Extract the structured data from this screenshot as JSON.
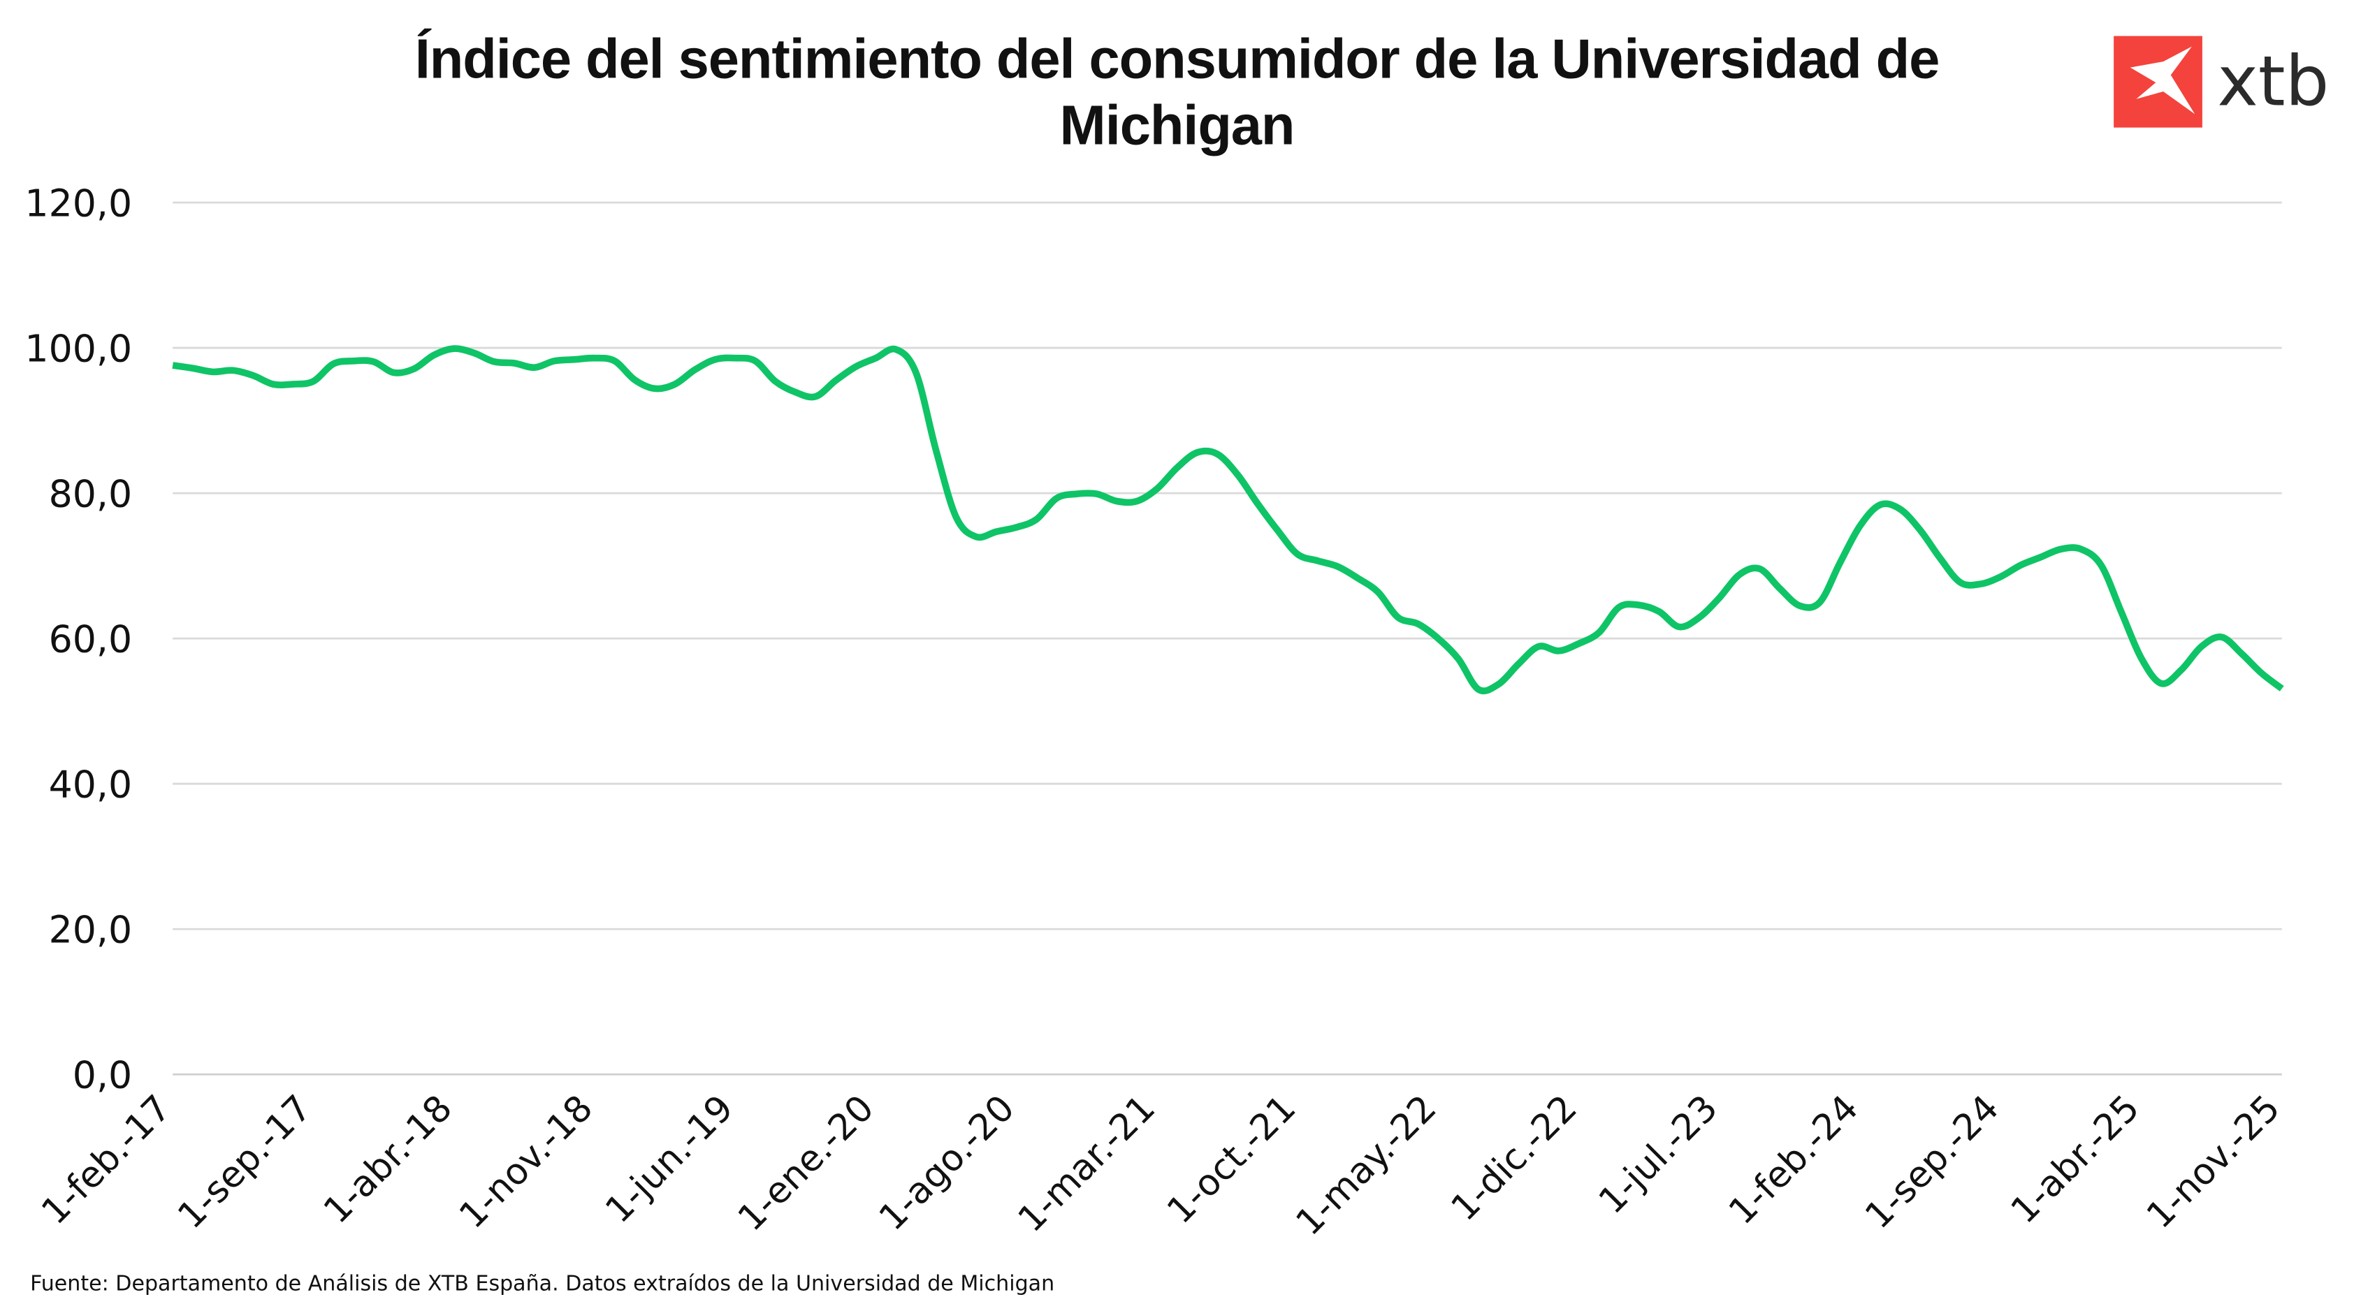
{
  "logo": {
    "text": "xtb",
    "color": "#f4433c"
  },
  "source": "Fuente: Departamento de Análisis de XTB España. Datos extraídos de la Universidad de Michigan",
  "chart_data": {
    "type": "line",
    "title_lines": [
      "Índice del sentimiento del consumidor de la Universidad de",
      "Michigan"
    ],
    "xlabel": "",
    "ylabel": "",
    "ylim": [
      0,
      120
    ],
    "yticks": [
      "0,0",
      "20,0",
      "40,0",
      "60,0",
      "80,0",
      "100,0",
      "120,0"
    ],
    "ytick_values": [
      0,
      20,
      40,
      60,
      80,
      100,
      120
    ],
    "grid": "horizontal",
    "line_color": "#0fc466",
    "xtick_labels": [
      "1-feb.-17",
      "1-sep.-17",
      "1-abr.-18",
      "1-nov.-18",
      "1-jun.-19",
      "1-ene.-20",
      "1-ago.-20",
      "1-mar.-21",
      "1-oct.-21",
      "1-may.-22",
      "1-dic.-22",
      "1-jul.-23",
      "1-feb.-24",
      "1-sep.-24",
      "1-abr.-25",
      "1-nov.-25"
    ],
    "x": [
      "1-feb.-17",
      "1-mar.-17",
      "1-abr.-17",
      "1-may.-17",
      "1-jun.-17",
      "1-jul.-17",
      "1-ago.-17",
      "1-sep.-17",
      "1-oct.-17",
      "1-nov.-17",
      "1-dic.-17",
      "1-ene.-18",
      "1-feb.-18",
      "1-mar.-18",
      "1-abr.-18",
      "1-may.-18",
      "1-jun.-18",
      "1-jul.-18",
      "1-ago.-18",
      "1-sep.-18",
      "1-oct.-18",
      "1-nov.-18",
      "1-dic.-18",
      "1-ene.-19",
      "1-feb.-19",
      "1-mar.-19",
      "1-abr.-19",
      "1-may.-19",
      "1-jun.-19",
      "1-jul.-19",
      "1-ago.-19",
      "1-sep.-19",
      "1-oct.-19",
      "1-nov.-19",
      "1-dic.-19",
      "1-ene.-20",
      "1-feb.-20",
      "1-mar.-20",
      "1-abr.-20",
      "1-may.-20",
      "1-jun.-20",
      "1-jul.-20",
      "1-ago.-20",
      "1-sep.-20",
      "1-oct.-20",
      "1-nov.-20",
      "1-dic.-20",
      "1-ene.-21",
      "1-feb.-21",
      "1-mar.-21",
      "1-abr.-21",
      "1-may.-21",
      "1-jun.-21",
      "1-jul.-21",
      "1-ago.-21",
      "1-sep.-21",
      "1-oct.-21",
      "1-nov.-21",
      "1-dic.-21",
      "1-ene.-22",
      "1-feb.-22",
      "1-mar.-22",
      "1-abr.-22",
      "1-may.-22",
      "1-jun.-22",
      "1-jul.-22",
      "1-ago.-22",
      "1-sep.-22",
      "1-oct.-22",
      "1-nov.-22",
      "1-dic.-22",
      "1-ene.-23",
      "1-feb.-23",
      "1-mar.-23",
      "1-abr.-23",
      "1-may.-23",
      "1-jun.-23",
      "1-jul.-23",
      "1-ago.-23",
      "1-sep.-23",
      "1-oct.-23",
      "1-nov.-23",
      "1-dic.-23",
      "1-ene.-24",
      "1-feb.-24",
      "1-mar.-24",
      "1-abr.-24",
      "1-may.-24",
      "1-jun.-24",
      "1-jul.-24",
      "1-ago.-24",
      "1-sep.-24",
      "1-oct.-24",
      "1-nov.-24",
      "1-dic.-24",
      "1-ene.-25",
      "1-feb.-25",
      "1-mar.-25",
      "1-abr.-25",
      "1-may.-25",
      "1-jun.-25",
      "1-jul.-25",
      "1-ago.-25",
      "1-sep.-25",
      "1-oct.-25",
      "1-nov.-25"
    ],
    "values": [
      97.6,
      97.2,
      96.7,
      96.9,
      96.2,
      95.0,
      95.0,
      95.4,
      97.8,
      98.2,
      98.1,
      96.6,
      97.1,
      99.0,
      99.9,
      99.3,
      98.1,
      97.9,
      97.3,
      98.2,
      98.4,
      98.6,
      98.2,
      95.6,
      94.4,
      95.0,
      97.0,
      98.4,
      98.6,
      98.2,
      95.4,
      93.9,
      93.3,
      95.5,
      97.4,
      98.6,
      99.8,
      96.6,
      85.9,
      76.7,
      74.0,
      74.7,
      75.3,
      76.4,
      79.3,
      79.9,
      79.9,
      78.9,
      78.9,
      80.6,
      83.5,
      85.6,
      85.4,
      82.6,
      78.6,
      74.9,
      71.6,
      70.7,
      69.9,
      68.3,
      66.4,
      62.9,
      62.0,
      60.0,
      57.2,
      53.0,
      53.7,
      56.5,
      58.9,
      58.3,
      59.3,
      60.8,
      64.3,
      64.6,
      63.7,
      61.6,
      62.9,
      65.6,
      68.8,
      69.6,
      66.9,
      64.5,
      65.0,
      70.4,
      75.5,
      78.4,
      77.8,
      74.9,
      71.0,
      67.7,
      67.5,
      68.5,
      70.1,
      71.2,
      72.3,
      72.3,
      70.1,
      63.7,
      57.3,
      53.8,
      55.7,
      58.9,
      60.2,
      57.9,
      55.2,
      53.1
    ]
  }
}
